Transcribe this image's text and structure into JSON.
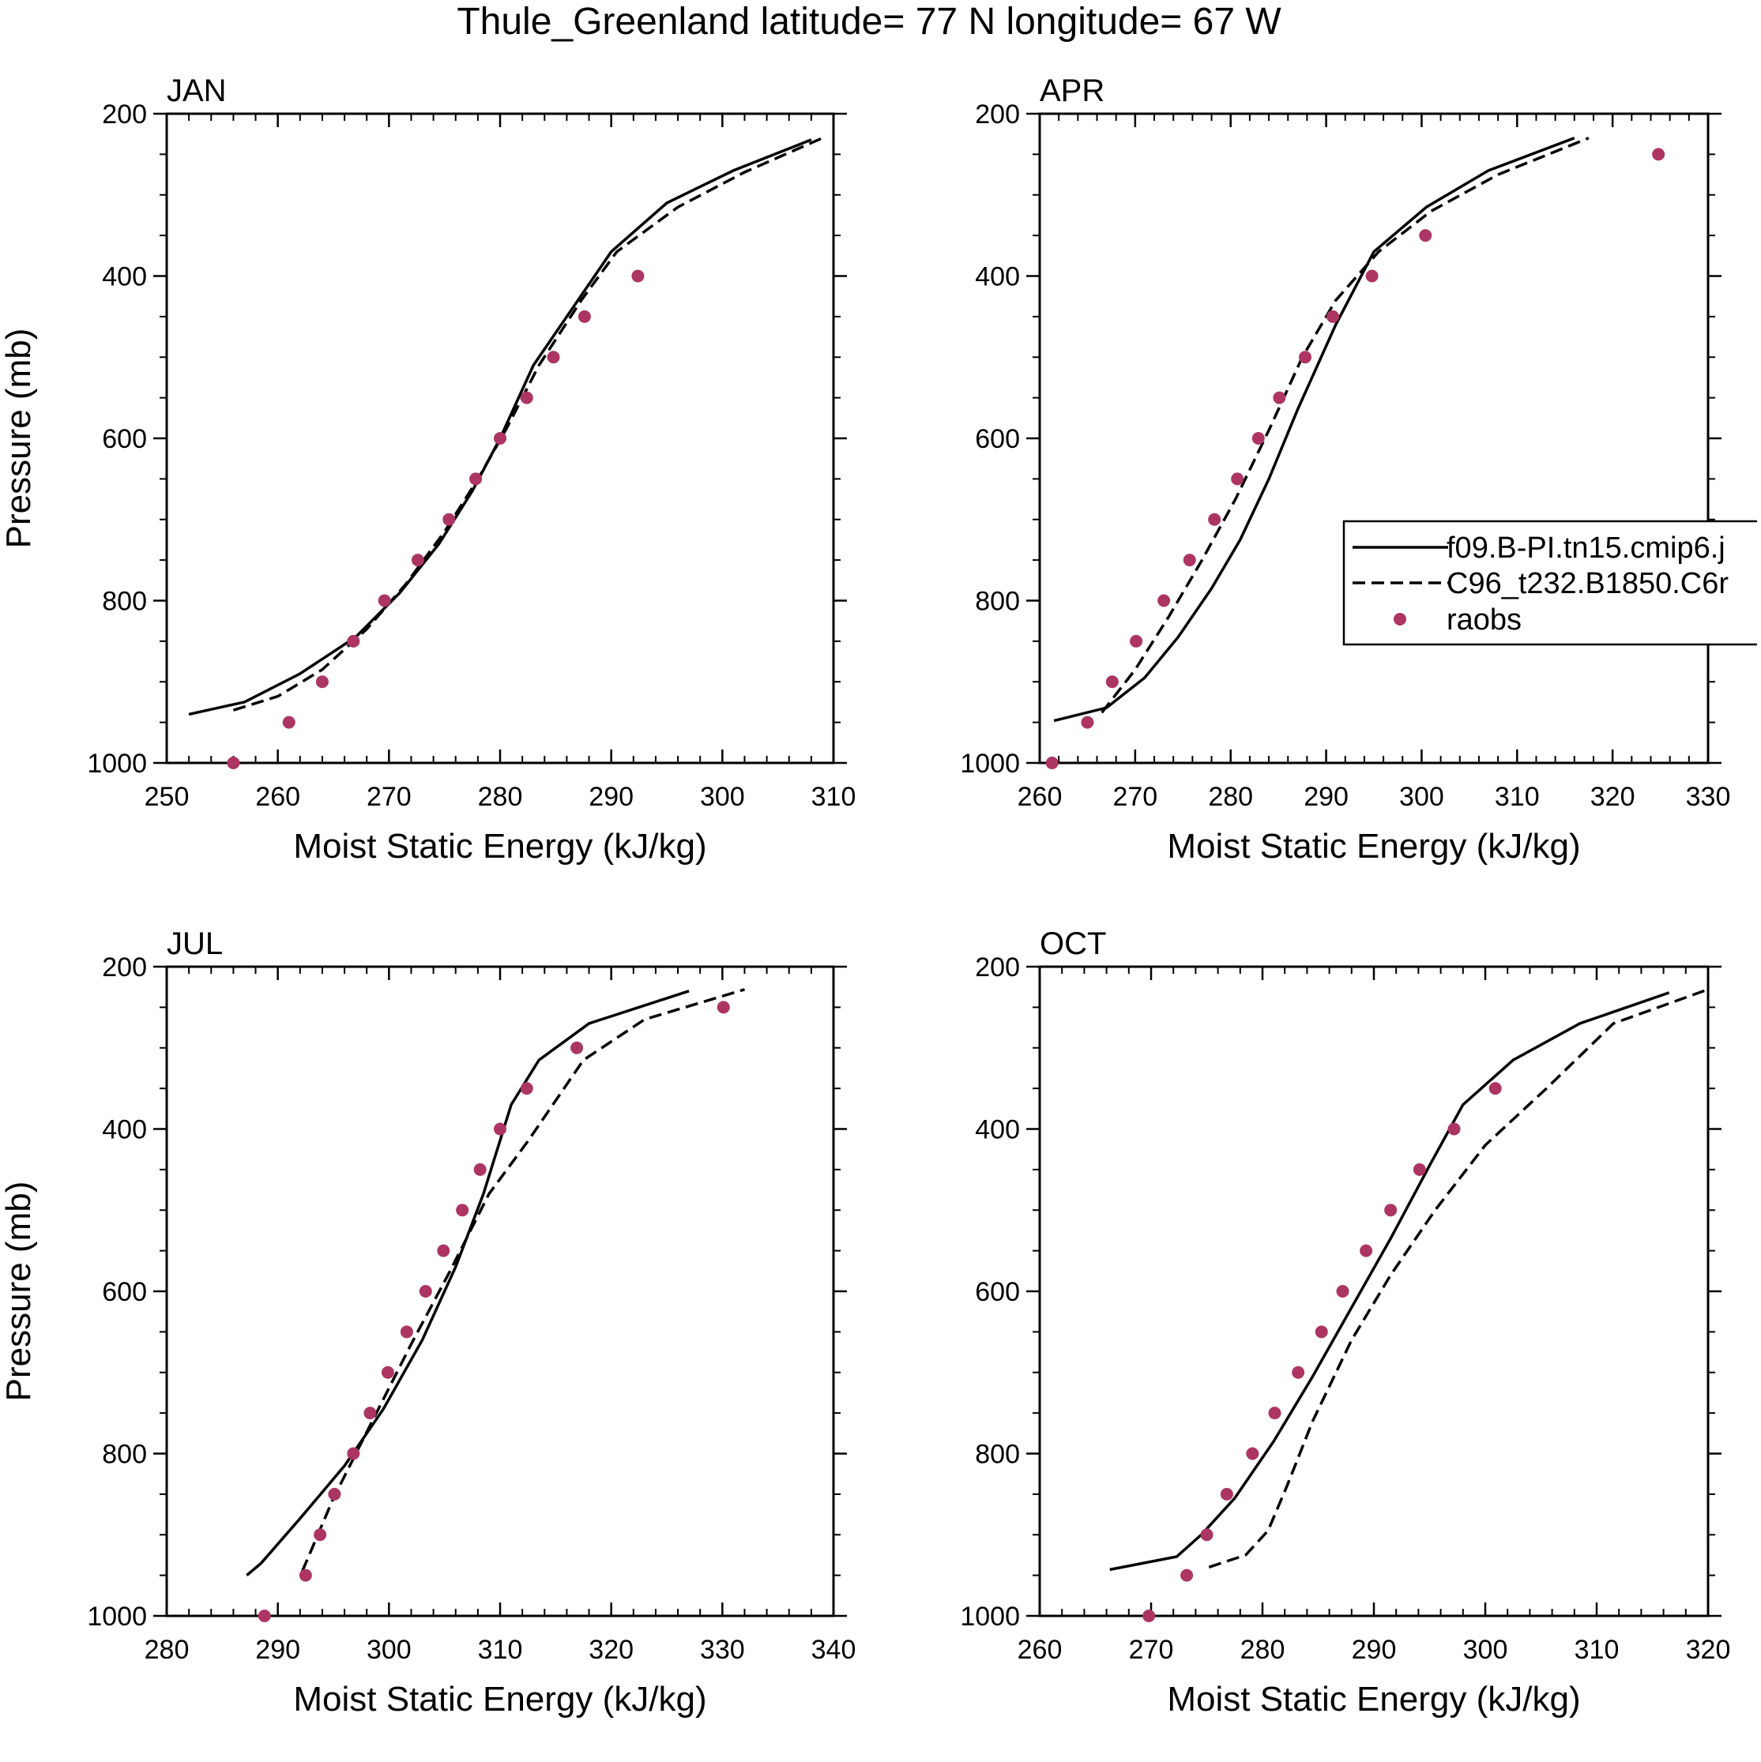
{
  "title": "Thule_Greenland  latitude= 77 N longitude= 67 W",
  "colors": {
    "axes": "#000000",
    "line": "#000000",
    "raobs": "#ad3563"
  },
  "legend": {
    "entries": [
      "f09.B-PI.tn15.cmip6.j",
      "C96_t232.B1850.C6r",
      "raobs"
    ],
    "placement": "right-middle of APR panel (clipped at figure edge)"
  },
  "chart_data": [
    {
      "type": "line",
      "panel": "JAN",
      "xlabel": "Moist Static Energy (kJ/kg)",
      "ylabel": "Pressure (mb)",
      "xlim": [
        250,
        310
      ],
      "ylim": [
        200,
        1000
      ],
      "y_inverted": true,
      "xticks": [
        "250",
        "260",
        "270",
        "280",
        "290",
        "300",
        "310"
      ],
      "yticks": [
        "200",
        "400",
        "600",
        "800",
        "1000"
      ],
      "series": [
        {
          "name": "f09.B-PI.tn15.cmip6.j",
          "style": "solid",
          "x": [
            252,
            257,
            262,
            267,
            271,
            274.5,
            277.5,
            280,
            283,
            287,
            290,
            295,
            301,
            308
          ],
          "y": [
            940,
            925,
            890,
            845,
            790,
            730,
            665,
            600,
            510,
            430,
            370,
            310,
            270,
            232
          ]
        },
        {
          "name": "C96_t232.B1850.C6r",
          "style": "dashed",
          "x": [
            256,
            260,
            264,
            268,
            271.5,
            275,
            278,
            280.5,
            283.5,
            287.3,
            290.5,
            296,
            302,
            309
          ],
          "y": [
            935,
            918,
            885,
            835,
            780,
            715,
            650,
            590,
            510,
            430,
            370,
            315,
            272,
            230
          ]
        }
      ],
      "points": {
        "name": "raobs",
        "x": [
          256,
          261,
          264,
          266.8,
          269.6,
          272.6,
          275.4,
          277.8,
          280,
          282.4,
          284.8,
          287.6,
          292.4
        ],
        "y": [
          1000,
          950,
          900,
          850,
          800,
          750,
          700,
          650,
          600,
          550,
          500,
          450,
          400
        ]
      }
    },
    {
      "type": "line",
      "panel": "APR",
      "xlabel": "Moist Static Energy (kJ/kg)",
      "ylabel": "",
      "xlim": [
        260,
        330
      ],
      "ylim": [
        200,
        1000
      ],
      "y_inverted": true,
      "xticks": [
        "260",
        "270",
        "280",
        "290",
        "300",
        "310",
        "320",
        "330"
      ],
      "yticks": [
        "200",
        "400",
        "600",
        "800",
        "1000"
      ],
      "series": [
        {
          "name": "f09.B-PI.tn15.cmip6.j",
          "style": "solid",
          "x": [
            261.5,
            267,
            271,
            274.5,
            278,
            281,
            284,
            287,
            291,
            295,
            300.5,
            307,
            316
          ],
          "y": [
            948,
            932,
            895,
            845,
            785,
            725,
            650,
            565,
            460,
            370,
            315,
            270,
            230
          ]
        },
        {
          "name": "C96_t232.B1850.C6r",
          "style": "dashed",
          "x": [
            266.5,
            270,
            273.5,
            277,
            280.5,
            284,
            287.5,
            291,
            295.5,
            301,
            308,
            317.5
          ],
          "y": [
            938,
            885,
            820,
            750,
            675,
            590,
            500,
            430,
            370,
            320,
            275,
            230
          ]
        }
      ],
      "points": {
        "name": "raobs",
        "x": [
          261.3,
          265,
          267.6,
          270.1,
          273,
          275.7,
          278.3,
          280.7,
          282.9,
          285.1,
          287.8,
          290.7,
          294.8,
          300.4,
          324.8
        ],
        "y": [
          1000,
          950,
          900,
          850,
          800,
          750,
          700,
          650,
          600,
          550,
          500,
          450,
          400,
          350,
          250
        ]
      }
    },
    {
      "type": "line",
      "panel": "JUL",
      "xlabel": "Moist Static Energy (kJ/kg)",
      "ylabel": "Pressure (mb)",
      "xlim": [
        280,
        340
      ],
      "ylim": [
        200,
        1000
      ],
      "y_inverted": true,
      "xticks": [
        "280",
        "290",
        "300",
        "310",
        "320",
        "330",
        "340"
      ],
      "yticks": [
        "200",
        "400",
        "600",
        "800",
        "1000"
      ],
      "series": [
        {
          "name": "f09.B-PI.tn15.cmip6.j",
          "style": "solid",
          "x": [
            287.2,
            288.5,
            292,
            296,
            299.5,
            303,
            306,
            308.5,
            311,
            313.5,
            318,
            327
          ],
          "y": [
            950,
            935,
            880,
            815,
            745,
            660,
            570,
            480,
            370,
            315,
            270,
            230
          ]
        },
        {
          "name": "C96_t232.B1850.C6r",
          "style": "dashed",
          "x": [
            292.2,
            295,
            298.5,
            302,
            305.5,
            309,
            312.5,
            317.5,
            323,
            332
          ],
          "y": [
            945,
            855,
            760,
            665,
            575,
            480,
            415,
            315,
            265,
            228
          ]
        }
      ],
      "points": {
        "name": "raobs",
        "x": [
          288.8,
          292.5,
          293.8,
          295.1,
          296.8,
          298.3,
          299.9,
          301.6,
          303.3,
          304.9,
          306.6,
          308.2,
          310,
          312.4,
          316.9,
          330.1
        ],
        "y": [
          1000,
          950,
          900,
          850,
          800,
          750,
          700,
          650,
          600,
          550,
          500,
          450,
          400,
          350,
          300,
          250
        ]
      }
    },
    {
      "type": "line",
      "panel": "OCT",
      "xlabel": "Moist Static Energy (kJ/kg)",
      "ylabel": "",
      "xlim": [
        260,
        320
      ],
      "ylim": [
        200,
        1000
      ],
      "y_inverted": true,
      "xticks": [
        "260",
        "270",
        "280",
        "290",
        "300",
        "310",
        "320"
      ],
      "yticks": [
        "200",
        "400",
        "600",
        "800",
        "1000"
      ],
      "series": [
        {
          "name": "f09.B-PI.tn15.cmip6.j",
          "style": "solid",
          "x": [
            266.3,
            272.3,
            274.5,
            277.5,
            281,
            284.5,
            288,
            291.5,
            295,
            298,
            302.5,
            308.5,
            316.5
          ],
          "y": [
            943,
            927,
            900,
            855,
            785,
            705,
            620,
            535,
            445,
            370,
            315,
            270,
            232
          ]
        },
        {
          "name": "C96_t232.B1850.C6r",
          "style": "dashed",
          "x": [
            275.2,
            278.5,
            280.5,
            282.2,
            284.5,
            288,
            291.5,
            295.5,
            300,
            305.5,
            311.5,
            320
          ],
          "y": [
            940,
            925,
            895,
            840,
            760,
            660,
            580,
            500,
            420,
            350,
            270,
            228
          ]
        }
      ],
      "points": {
        "name": "raobs",
        "x": [
          269.8,
          273.2,
          275,
          276.8,
          279.1,
          281.1,
          283.2,
          285.3,
          287.2,
          289.3,
          291.5,
          294.1,
          297.2,
          300.9
        ],
        "y": [
          1000,
          950,
          900,
          850,
          800,
          750,
          700,
          650,
          600,
          550,
          500,
          450,
          400,
          350
        ]
      }
    }
  ]
}
